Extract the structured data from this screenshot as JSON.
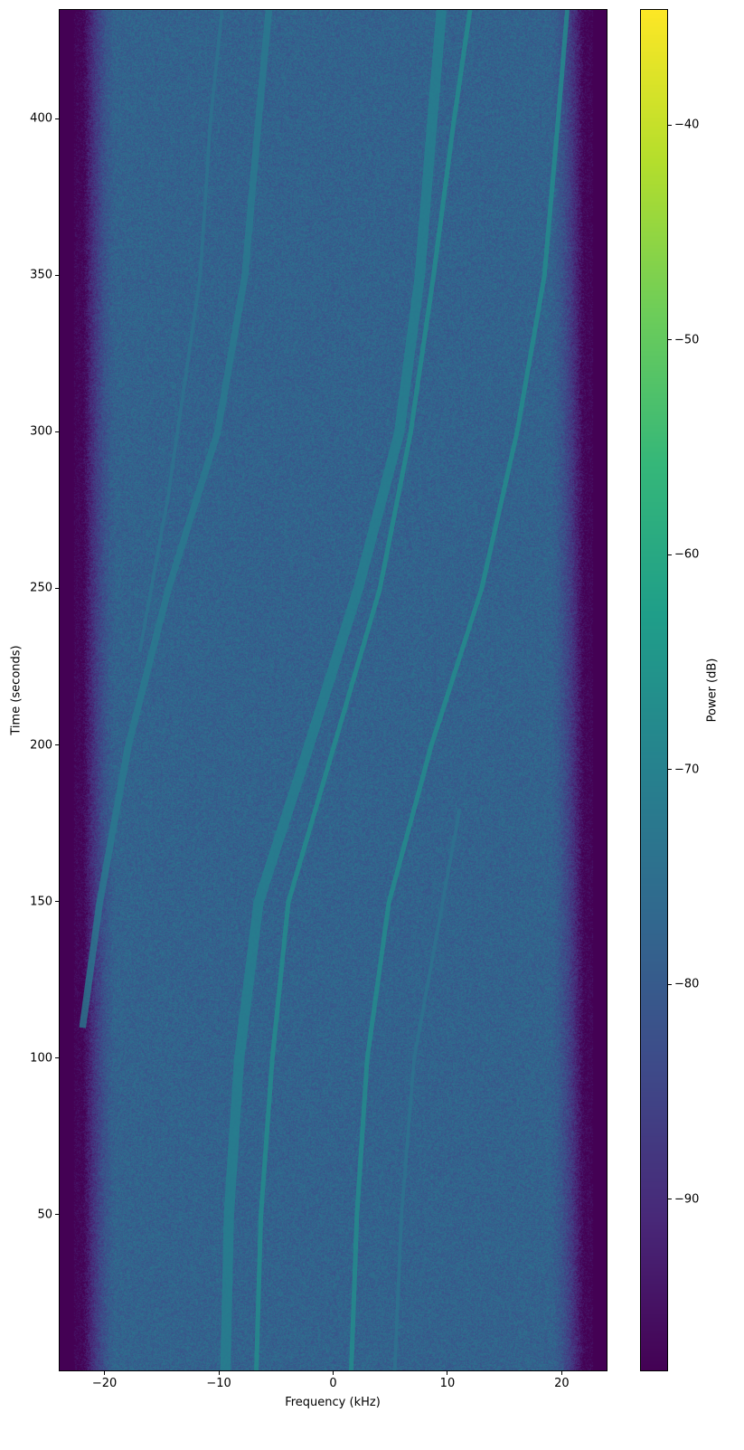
{
  "chart_data": {
    "type": "heatmap",
    "subtype": "spectrogram",
    "xlabel": "Frequency (kHz)",
    "ylabel": "Time (seconds)",
    "colorbar_label": "Power (dB)",
    "colormap": "viridis",
    "xlim": [
      -24,
      24
    ],
    "ylim": [
      0,
      435
    ],
    "clim": [
      -98,
      -34.6
    ],
    "xticks": [
      -20,
      -10,
      0,
      10,
      20
    ],
    "xtick_labels": [
      "−20",
      "−10",
      "0",
      "10",
      "20"
    ],
    "yticks": [
      50,
      100,
      150,
      200,
      250,
      300,
      350,
      400
    ],
    "ytick_labels": [
      "50",
      "100",
      "150",
      "200",
      "250",
      "300",
      "350",
      "400"
    ],
    "cticks": [
      -40,
      -50,
      -60,
      -70,
      -80,
      -90
    ],
    "ctick_labels": [
      "−40",
      "−50",
      "−60",
      "−70",
      "−80",
      "−90"
    ],
    "background_power_db": -78,
    "band_edge_khz": 22,
    "edge_power_db": -98,
    "tracks": [
      {
        "power_db": -70,
        "width_khz": 0.9,
        "points": [
          [
            0,
            -9.5
          ],
          [
            50,
            -9.2
          ],
          [
            100,
            -8.3
          ],
          [
            150,
            -6.6
          ],
          [
            200,
            -2.2
          ],
          [
            250,
            2.1
          ],
          [
            300,
            5.7
          ],
          [
            350,
            7.5
          ],
          [
            400,
            8.6
          ],
          [
            435,
            9.4
          ]
        ]
      },
      {
        "power_db": -67,
        "width_khz": 0.4,
        "points": [
          [
            0,
            -6.8
          ],
          [
            50,
            -6.4
          ],
          [
            100,
            -5.4
          ],
          [
            150,
            -4.0
          ],
          [
            200,
            0.0
          ],
          [
            250,
            4.0
          ],
          [
            300,
            6.7
          ],
          [
            350,
            8.7
          ],
          [
            400,
            10.5
          ],
          [
            435,
            11.9
          ]
        ]
      },
      {
        "power_db": -67,
        "width_khz": 0.4,
        "points": [
          [
            0,
            1.5
          ],
          [
            50,
            2.0
          ],
          [
            100,
            2.9
          ],
          [
            150,
            4.8
          ],
          [
            200,
            8.5
          ],
          [
            250,
            12.9
          ],
          [
            300,
            16.0
          ],
          [
            350,
            18.4
          ],
          [
            400,
            19.6
          ],
          [
            435,
            20.4
          ]
        ]
      },
      {
        "power_db": -72,
        "width_khz": 0.6,
        "points": [
          [
            110,
            -22.0
          ],
          [
            150,
            -20.5
          ],
          [
            200,
            -18.0
          ],
          [
            250,
            -14.5
          ],
          [
            300,
            -10.2
          ],
          [
            350,
            -7.8
          ],
          [
            400,
            -6.6
          ],
          [
            435,
            -5.7
          ]
        ]
      },
      {
        "power_db": -74,
        "width_khz": 0.3,
        "points": [
          [
            230,
            -17.0
          ],
          [
            280,
            -14.5
          ],
          [
            350,
            -11.7
          ],
          [
            400,
            -10.8
          ],
          [
            435,
            -9.8
          ]
        ]
      },
      {
        "power_db": -74,
        "width_khz": 0.3,
        "points": [
          [
            0,
            5.3
          ],
          [
            50,
            5.9
          ],
          [
            100,
            7.0
          ],
          [
            150,
            9.5
          ],
          [
            180,
            11.0
          ]
        ]
      }
    ]
  }
}
